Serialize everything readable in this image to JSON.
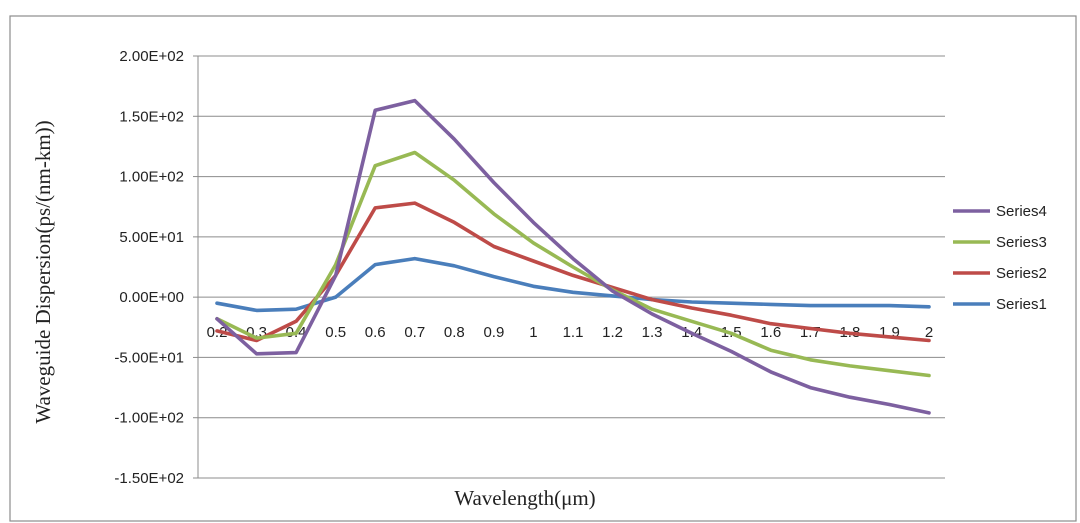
{
  "chart_data": {
    "type": "line",
    "title": "",
    "xlabel": "Wavelength(μm)",
    "ylabel": "Waveguide Dispersion(ps/(nm-km))",
    "categories": [
      "0.2",
      "0.3",
      "0.4",
      "0.5",
      "0.6",
      "0.7",
      "0.8",
      "0.9",
      "1",
      "1.1",
      "1.2",
      "1.3",
      "1.4",
      "1.5",
      "1.6",
      "1.7",
      "1.8",
      "1.9",
      "2"
    ],
    "ylim": [
      -150,
      200
    ],
    "yticks": [
      200,
      150,
      100,
      50,
      0,
      -50,
      -100,
      -150
    ],
    "ytick_labels": [
      "2.00E+02",
      "1.50E+02",
      "1.00E+02",
      "5.00E+01",
      "0.00E+00",
      "-5.00E+01",
      "-1.00E+02",
      "-1.50E+02"
    ],
    "grid": true,
    "legend_position": "right",
    "series": [
      {
        "name": "Series1",
        "color": "#4a7ebb",
        "values": [
          -5,
          -11,
          -10,
          0,
          27,
          32,
          26,
          17,
          9,
          4,
          1,
          -2,
          -4,
          -5,
          -6,
          -7,
          -7,
          -7,
          -8
        ]
      },
      {
        "name": "Series2",
        "color": "#be4b48",
        "values": [
          -28,
          -36,
          -20,
          18,
          74,
          78,
          62,
          42,
          30,
          18,
          8,
          -2,
          -9,
          -15,
          -22,
          -26,
          -30,
          -33,
          -36
        ]
      },
      {
        "name": "Series3",
        "color": "#98b954",
        "values": [
          -18,
          -34,
          -30,
          27,
          109,
          120,
          97,
          69,
          45,
          25,
          6,
          -10,
          -20,
          -30,
          -44,
          -52,
          -57,
          -61,
          -65
        ]
      },
      {
        "name": "Series4",
        "color": "#7d60a0",
        "values": [
          -18,
          -47,
          -46,
          18,
          155,
          163,
          131,
          95,
          62,
          32,
          5,
          -14,
          -30,
          -45,
          -62,
          -75,
          -83,
          -89,
          -96
        ]
      }
    ]
  }
}
